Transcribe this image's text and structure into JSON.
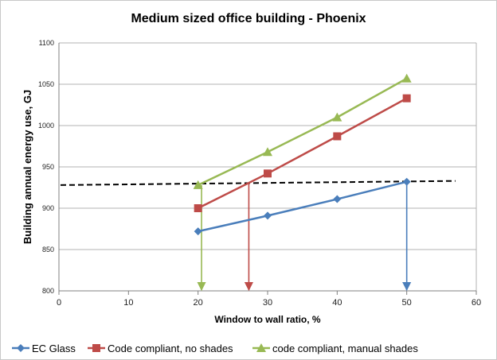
{
  "chart_data": {
    "type": "line",
    "title": "Medium sized office building - Phoenix",
    "xlabel": "Window to wall ratio, %",
    "ylabel": "Building annual energy use, GJ",
    "xlim": [
      0,
      60
    ],
    "ylim": [
      800,
      1100
    ],
    "xticks": [
      "0",
      "10",
      "20",
      "30",
      "40",
      "50",
      "60"
    ],
    "yticks": [
      "800",
      "850",
      "900",
      "950",
      "1000",
      "1050",
      "1100"
    ],
    "grid": true,
    "legend_position": "bottom",
    "x": [
      20,
      30,
      40,
      50
    ],
    "series": [
      {
        "name": "EC Glass",
        "values": [
          872,
          891,
          911,
          932
        ],
        "color": "#4a7ebb",
        "marker": "diamond"
      },
      {
        "name": "Code compliant, no shades",
        "values": [
          900,
          942,
          987,
          1033
        ],
        "color": "#be4b48",
        "marker": "square"
      },
      {
        "name": "code compliant, manual shades",
        "values": [
          928,
          968,
          1010,
          1057
        ],
        "color": "#98b954",
        "marker": "triangle"
      }
    ],
    "reference_line": {
      "style": "dashed",
      "color": "#000000",
      "x": [
        0,
        57
      ],
      "values": [
        928,
        933
      ]
    },
    "arrows": [
      {
        "color": "#98b954",
        "x": 20.5,
        "from": 928,
        "to": 800
      },
      {
        "color": "#be4b48",
        "x": 27.3,
        "from": 931,
        "to": 800
      },
      {
        "color": "#4a7ebb",
        "x": 50,
        "from": 932,
        "to": 800
      }
    ]
  }
}
